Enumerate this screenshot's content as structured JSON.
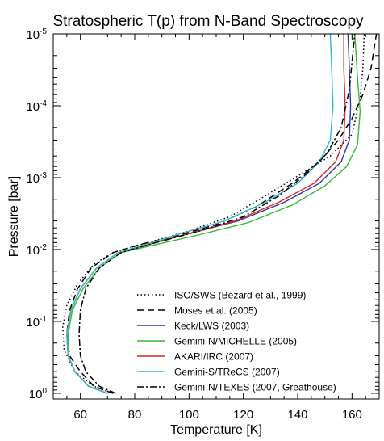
{
  "chart_data": {
    "type": "line",
    "title": "Stratospheric T(p) from N-Band Spectroscopy",
    "xlabel": "Temperature [K]",
    "ylabel": "Pressure [bar]",
    "xlim": [
      50,
      170
    ],
    "ylim": [
      1.2,
      1e-05
    ],
    "y_scale": "log",
    "y_inverted": true,
    "grid": false,
    "legend_position": "bottom-right",
    "x_ticks": [
      {
        "value": 60,
        "label": "60"
      },
      {
        "value": 80,
        "label": "80"
      },
      {
        "value": 100,
        "label": "100"
      },
      {
        "value": 120,
        "label": "120"
      },
      {
        "value": 140,
        "label": "140"
      },
      {
        "value": 160,
        "label": "160"
      }
    ],
    "y_ticks": [
      {
        "value": 1e-05,
        "base": "10",
        "exp": "-5"
      },
      {
        "value": 0.0001,
        "base": "10",
        "exp": "-4"
      },
      {
        "value": 0.001,
        "base": "10",
        "exp": "-3"
      },
      {
        "value": 0.01,
        "base": "10",
        "exp": "-2"
      },
      {
        "value": 0.1,
        "base": "10",
        "exp": "-1"
      },
      {
        "value": 1,
        "base": "10",
        "exp": "0"
      }
    ],
    "series": [
      {
        "name": "ISO/SWS (Bezard et al., 1999)",
        "color": "#000000",
        "dash": "dotted",
        "x": [
          72,
          65,
          58,
          54,
          53.5,
          55,
          59,
          65,
          72,
          85,
          100,
          115,
          128,
          140,
          152,
          160,
          163,
          164,
          164.5
        ],
        "y": [
          1.0,
          0.8,
          0.5,
          0.25,
          0.12,
          0.06,
          0.03,
          0.016,
          0.011,
          0.008,
          0.0055,
          0.0035,
          0.0018,
          0.00095,
          0.0005,
          0.00025,
          8e-05,
          3e-05,
          1e-05
        ]
      },
      {
        "name": "Moses et al. (2005)",
        "color": "#000000",
        "dash": "dashed",
        "x": [
          72,
          65,
          60,
          56,
          55,
          56,
          59,
          64,
          72,
          82,
          95,
          110,
          125,
          138,
          148,
          155,
          160,
          164,
          167,
          169
        ],
        "y": [
          1.0,
          0.8,
          0.5,
          0.3,
          0.15,
          0.07,
          0.035,
          0.018,
          0.011,
          0.0085,
          0.0065,
          0.0045,
          0.0025,
          0.0012,
          0.0006,
          0.0003,
          0.00015,
          7e-05,
          3e-05,
          1e-05
        ]
      },
      {
        "name": "Keck/LWS (2003)",
        "color": "#3333aa",
        "dash": "solid",
        "x": [
          70,
          63,
          58,
          55.5,
          55,
          56.5,
          60,
          66,
          74,
          85,
          100,
          118,
          135,
          148,
          156,
          159,
          159.5,
          159,
          158.5
        ],
        "y": [
          1.0,
          0.8,
          0.5,
          0.3,
          0.15,
          0.07,
          0.035,
          0.018,
          0.011,
          0.0085,
          0.006,
          0.004,
          0.0022,
          0.0012,
          0.0006,
          0.0003,
          0.0001,
          3e-05,
          1e-05
        ]
      },
      {
        "name": "Gemini-N/MICHELLE (2005)",
        "color": "#33bb33",
        "dash": "solid",
        "x": [
          70,
          63,
          58,
          55.5,
          55.5,
          57,
          61,
          67,
          75,
          88,
          104,
          122,
          138,
          150,
          158,
          162,
          163,
          162,
          161
        ],
        "y": [
          1.0,
          0.8,
          0.5,
          0.3,
          0.15,
          0.07,
          0.035,
          0.018,
          0.011,
          0.0085,
          0.0062,
          0.0042,
          0.0024,
          0.0013,
          0.0007,
          0.00035,
          0.00012,
          4e-05,
          1e-05
        ]
      },
      {
        "name": "AKARI/IRC (2007)",
        "color": "#dd2222",
        "dash": "solid",
        "x": [
          70,
          63,
          58,
          55.5,
          55,
          56.5,
          60,
          66,
          74,
          85,
          100,
          117,
          133,
          146,
          154,
          157,
          157.5,
          157,
          157
        ],
        "y": [
          1.0,
          0.8,
          0.5,
          0.3,
          0.15,
          0.07,
          0.035,
          0.018,
          0.011,
          0.0085,
          0.006,
          0.004,
          0.0022,
          0.0012,
          0.0006,
          0.0003,
          0.0001,
          3e-05,
          1e-05
        ]
      },
      {
        "name": "Gemini-S/TReCS (2007)",
        "color": "#33bbcc",
        "dash": "solid",
        "x": [
          70,
          63,
          58,
          55.5,
          55,
          56.5,
          60,
          66,
          74,
          84,
          97,
          113,
          128,
          140,
          148,
          152,
          153,
          152.5,
          152
        ],
        "y": [
          1.0,
          0.8,
          0.5,
          0.3,
          0.15,
          0.07,
          0.035,
          0.018,
          0.011,
          0.0085,
          0.006,
          0.004,
          0.0022,
          0.0012,
          0.0006,
          0.0003,
          0.0001,
          3e-05,
          1e-05
        ]
      },
      {
        "name": "Gemini-N/TEXES (2007, Greathouse)",
        "color": "#000000",
        "dash": "dashdot",
        "x": [
          73,
          67,
          62,
          60,
          59.5,
          60,
          62,
          67,
          75,
          88,
          104,
          120,
          133,
          143,
          151,
          156,
          159,
          161
        ],
        "y": [
          1.0,
          0.8,
          0.5,
          0.3,
          0.15,
          0.07,
          0.035,
          0.018,
          0.011,
          0.008,
          0.0055,
          0.0035,
          0.0018,
          0.0009,
          0.00045,
          0.0002,
          6e-05,
          1e-05
        ]
      }
    ]
  }
}
